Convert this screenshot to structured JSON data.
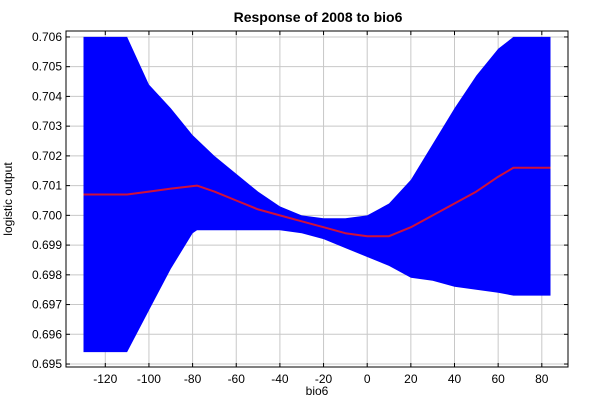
{
  "chart_data": {
    "type": "area",
    "title": "Response of 2008 to bio6",
    "xlabel": "bio6",
    "ylabel": "logistic output",
    "xlim": [
      -138,
      92
    ],
    "ylim": [
      0.6949,
      0.7062
    ],
    "xticks": [
      -120,
      -100,
      -80,
      -60,
      -40,
      -20,
      0,
      20,
      40,
      60,
      80
    ],
    "yticks": [
      0.695,
      0.696,
      0.697,
      0.698,
      0.699,
      0.7,
      0.701,
      0.702,
      0.703,
      0.704,
      0.705,
      0.706
    ],
    "ytick_labels": [
      "0.695",
      "0.696",
      "0.697",
      "0.698",
      "0.699",
      "0.700",
      "0.701",
      "0.702",
      "0.703",
      "0.704",
      "0.705",
      "0.706"
    ],
    "grid": true,
    "band_color": "#0000ff",
    "line_color": "#d0103a",
    "band_upper": {
      "x": [
        -130,
        -110,
        -100,
        -90,
        -80,
        -70,
        -60,
        -50,
        -40,
        -30,
        -20,
        -10,
        0,
        10,
        20,
        30,
        40,
        50,
        60,
        67,
        84
      ],
      "y": [
        0.706,
        0.706,
        0.7044,
        0.7036,
        0.7027,
        0.702,
        0.7014,
        0.7008,
        0.7003,
        0.7,
        0.6999,
        0.6999,
        0.7,
        0.7004,
        0.7012,
        0.7024,
        0.7036,
        0.7047,
        0.7056,
        0.706,
        0.706
      ]
    },
    "band_lower": {
      "x": [
        -130,
        -110,
        -100,
        -90,
        -80,
        -78,
        -70,
        -60,
        -40,
        -30,
        -20,
        -10,
        0,
        10,
        20,
        30,
        40,
        50,
        60,
        67,
        84
      ],
      "y": [
        0.6954,
        0.6954,
        0.6968,
        0.6982,
        0.6994,
        0.6995,
        0.6995,
        0.6995,
        0.6995,
        0.6994,
        0.6992,
        0.6989,
        0.6986,
        0.6983,
        0.6979,
        0.6978,
        0.6976,
        0.6975,
        0.6974,
        0.6973,
        0.6973
      ]
    },
    "series": [
      {
        "x": [
          -130,
          -110,
          -100,
          -90,
          -78,
          -70,
          -60,
          -50,
          -40,
          -30,
          -20,
          -10,
          0,
          3,
          10,
          20,
          30,
          40,
          50,
          60,
          67,
          84
        ],
        "values": [
          0.7007,
          0.7007,
          0.7008,
          0.7009,
          0.701,
          0.7008,
          0.7005,
          0.7002,
          0.7,
          0.6998,
          0.6996,
          0.6994,
          0.6993,
          0.6993,
          0.6993,
          0.6996,
          0.7,
          0.7004,
          0.7008,
          0.7013,
          0.7016,
          0.7016
        ]
      }
    ]
  }
}
